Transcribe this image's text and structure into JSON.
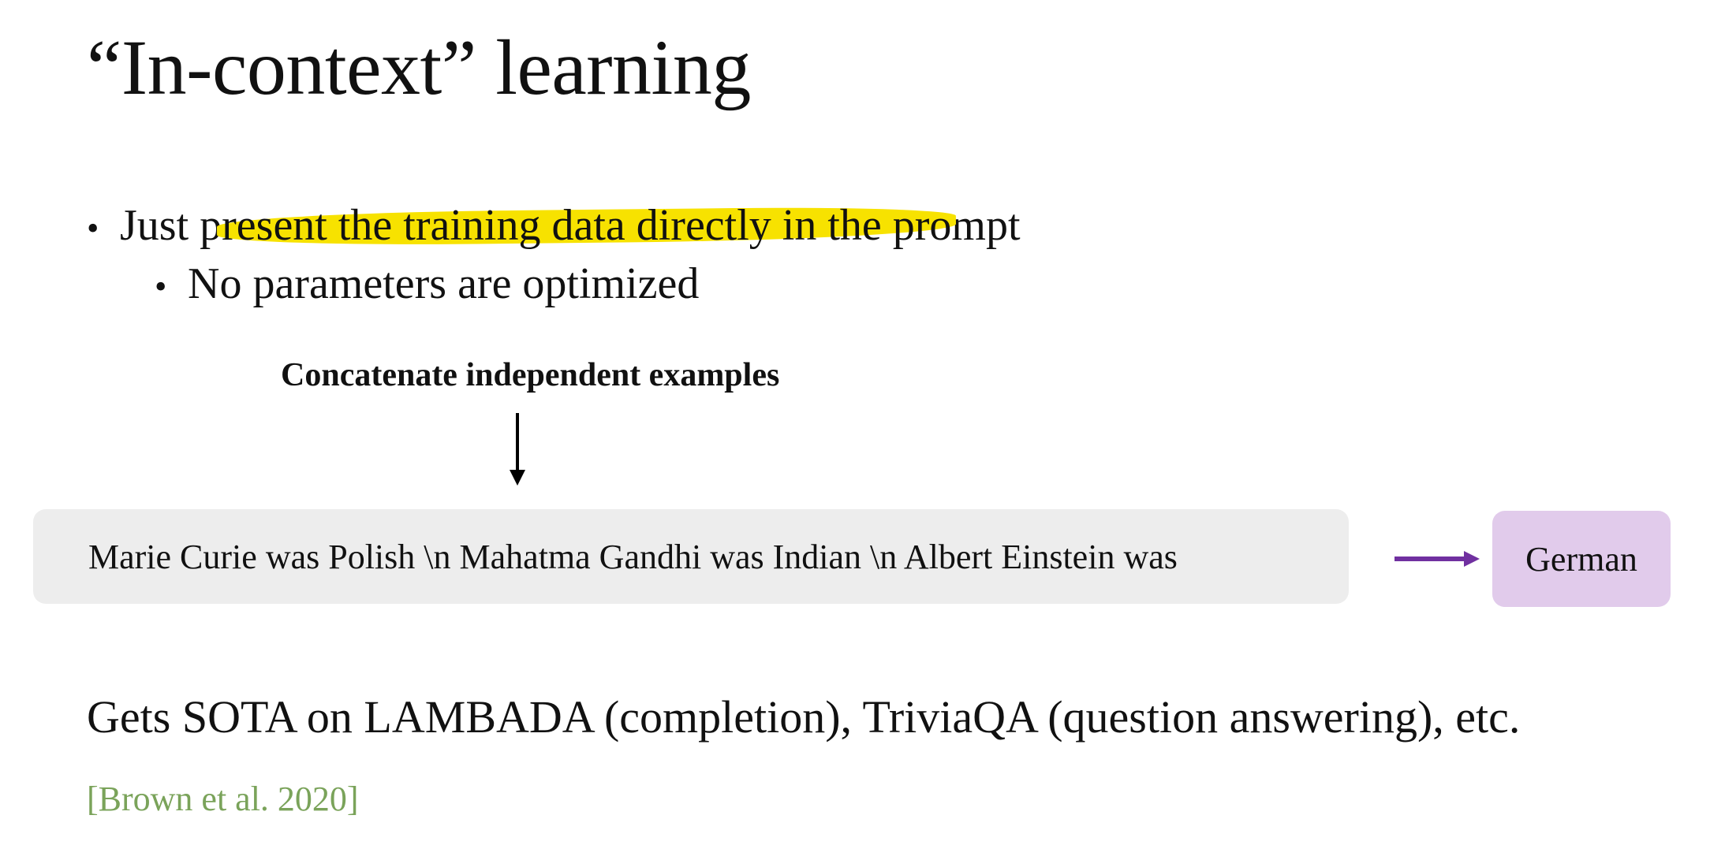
{
  "slide": {
    "title": "“In-context” learning",
    "bullets": [
      {
        "before": "Just p",
        "highlight": "resent the training data directly in the pro",
        "after": "mpt"
      }
    ],
    "sub_bullets": [
      {
        "text": "No parameters are optimized"
      }
    ],
    "bullet_glyph": "•",
    "diagram": {
      "label": "Concatenate independent examples",
      "prompt_text": "Marie Curie was Polish \\n Mahatma Gandhi was Indian \\n Albert Einstein was",
      "answer_text": "German",
      "colors": {
        "prompt_bg": "#ededed",
        "answer_bg": "#e1cbeb",
        "arrow": "#7030a0",
        "highlight": "#f7e200"
      }
    },
    "result": "Gets SOTA on LAMBADA (completion), TriviaQA (question answering), etc.",
    "citation": "[Brown et al. 2020]",
    "citation_color": "#7aa35a"
  }
}
